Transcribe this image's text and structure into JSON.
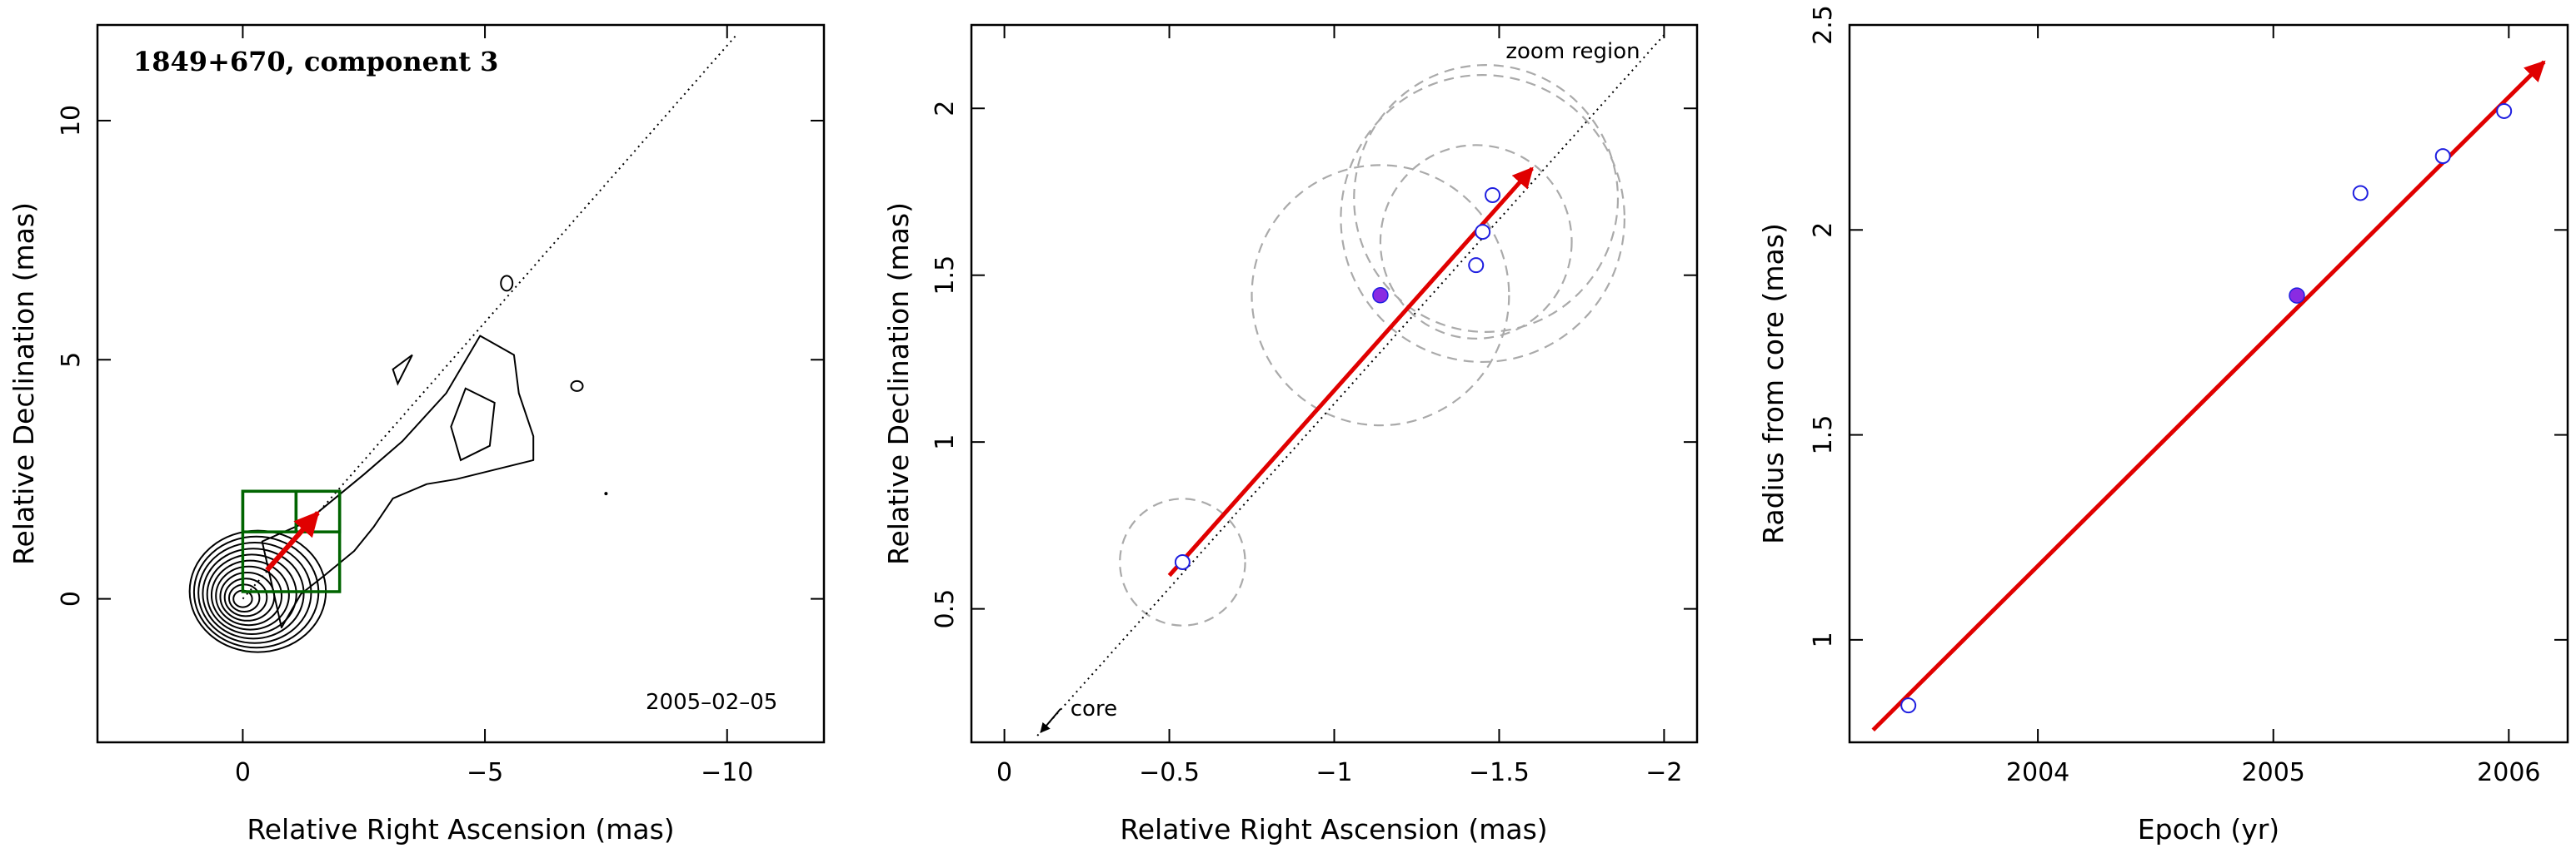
{
  "chart_data": [
    {
      "panel": "left",
      "type": "scatter",
      "title": "1849+670, component 3",
      "annotation": "2005–02–05",
      "xlabel": "Relative Right Ascension (mas)",
      "ylabel": "Relative Declination (mas)",
      "xlim": [
        3,
        -12
      ],
      "ylim": [
        -3,
        12
      ],
      "x_reversed": true,
      "xticks": [
        0,
        -5,
        -10
      ],
      "xtick_labels": [
        "0",
        "−5",
        "−10"
      ],
      "yticks": [
        0,
        5,
        10
      ],
      "ytick_labels": [
        "0",
        "5",
        "10"
      ],
      "contour_peak": [
        0,
        0
      ],
      "contour_levels": 11,
      "trajectory_line": {
        "from": [
          0,
          0
        ],
        "to": [
          -10.2,
          11.8
        ],
        "style": "dotted"
      },
      "arrow": {
        "from": [
          -0.5,
          0.6
        ],
        "to": [
          -1.55,
          1.8
        ],
        "color": "#e00000"
      },
      "zoom_boxes": [
        {
          "x": [
            0,
            -2
          ],
          "y": [
            0.15,
            2.25
          ],
          "color": "#006400"
        },
        {
          "x": [
            -1.1,
            -2
          ],
          "y": [
            1.4,
            2.25
          ],
          "color": "#006400"
        },
        {
          "x": [
            0,
            -1.1
          ],
          "y": [
            1.4,
            2.25
          ],
          "color": "#006400"
        }
      ]
    },
    {
      "panel": "middle",
      "type": "scatter",
      "xlabel": "Relative Right Ascension (mas)",
      "ylabel": "Relative Declination (mas)",
      "xlim": [
        0.1,
        -2.1
      ],
      "ylim": [
        0.1,
        2.25
      ],
      "x_reversed": true,
      "xticks": [
        0,
        -0.5,
        -1,
        -1.5,
        -2
      ],
      "xtick_labels": [
        "0",
        "−0.5",
        "−1",
        "−1.5",
        "−2"
      ],
      "yticks": [
        0.5,
        1,
        1.5,
        2
      ],
      "ytick_labels": [
        "0.5",
        "1",
        "1.5",
        "2"
      ],
      "labels": {
        "zoom": "zoom region",
        "core": "core"
      },
      "points_open": [
        {
          "x": -0.54,
          "y": 0.64
        },
        {
          "x": -1.43,
          "y": 1.53
        },
        {
          "x": -1.45,
          "y": 1.63
        },
        {
          "x": -1.48,
          "y": 1.74
        }
      ],
      "point_filled": {
        "x": -1.14,
        "y": 1.44
      },
      "circles": [
        {
          "cx": -0.54,
          "cy": 0.64,
          "r": 0.19
        },
        {
          "cx": -1.14,
          "cy": 1.44,
          "r": 0.39
        },
        {
          "cx": -1.43,
          "cy": 1.6,
          "r": 0.29
        },
        {
          "cx": -1.45,
          "cy": 1.67,
          "r": 0.43
        },
        {
          "cx": -1.46,
          "cy": 1.73,
          "r": 0.4
        }
      ],
      "trajectory_line": {
        "from": [
          -0.1,
          0.12
        ],
        "to": [
          -2.0,
          2.22
        ],
        "style": "dotted"
      },
      "arrow": {
        "from": [
          -0.5,
          0.6
        ],
        "to": [
          -1.6,
          1.82
        ],
        "color": "#e00000"
      },
      "core_arrow": {
        "from": [
          -0.17,
          0.2
        ],
        "to": [
          -0.11,
          0.13
        ]
      }
    },
    {
      "panel": "right",
      "type": "scatter",
      "xlabel": "Epoch (yr)",
      "ylabel": "Radius from core (mas)",
      "xlim": [
        2003.2,
        2006.25
      ],
      "ylim": [
        0.75,
        2.5
      ],
      "xticks": [
        2004,
        2005,
        2006
      ],
      "xtick_labels": [
        "2004",
        "2005",
        "2006"
      ],
      "yticks": [
        1,
        1.5,
        2,
        2.5
      ],
      "ytick_labels": [
        "1",
        "1.5",
        "2",
        "2.5"
      ],
      "points_open": [
        {
          "x": 2003.45,
          "y": 0.84
        },
        {
          "x": 2005.37,
          "y": 2.09
        },
        {
          "x": 2005.72,
          "y": 2.18
        },
        {
          "x": 2005.98,
          "y": 2.29
        }
      ],
      "point_filled": {
        "x": 2005.1,
        "y": 1.84
      },
      "fit_arrow": {
        "from": [
          2003.3,
          0.78
        ],
        "to": [
          2006.15,
          2.41
        ],
        "color": "#e00000"
      }
    }
  ],
  "colors": {
    "accent": "#e00000",
    "point": "#1f1fe0",
    "filled": "#8a2be2",
    "box": "#006400",
    "circle": "#aaaaaa"
  }
}
